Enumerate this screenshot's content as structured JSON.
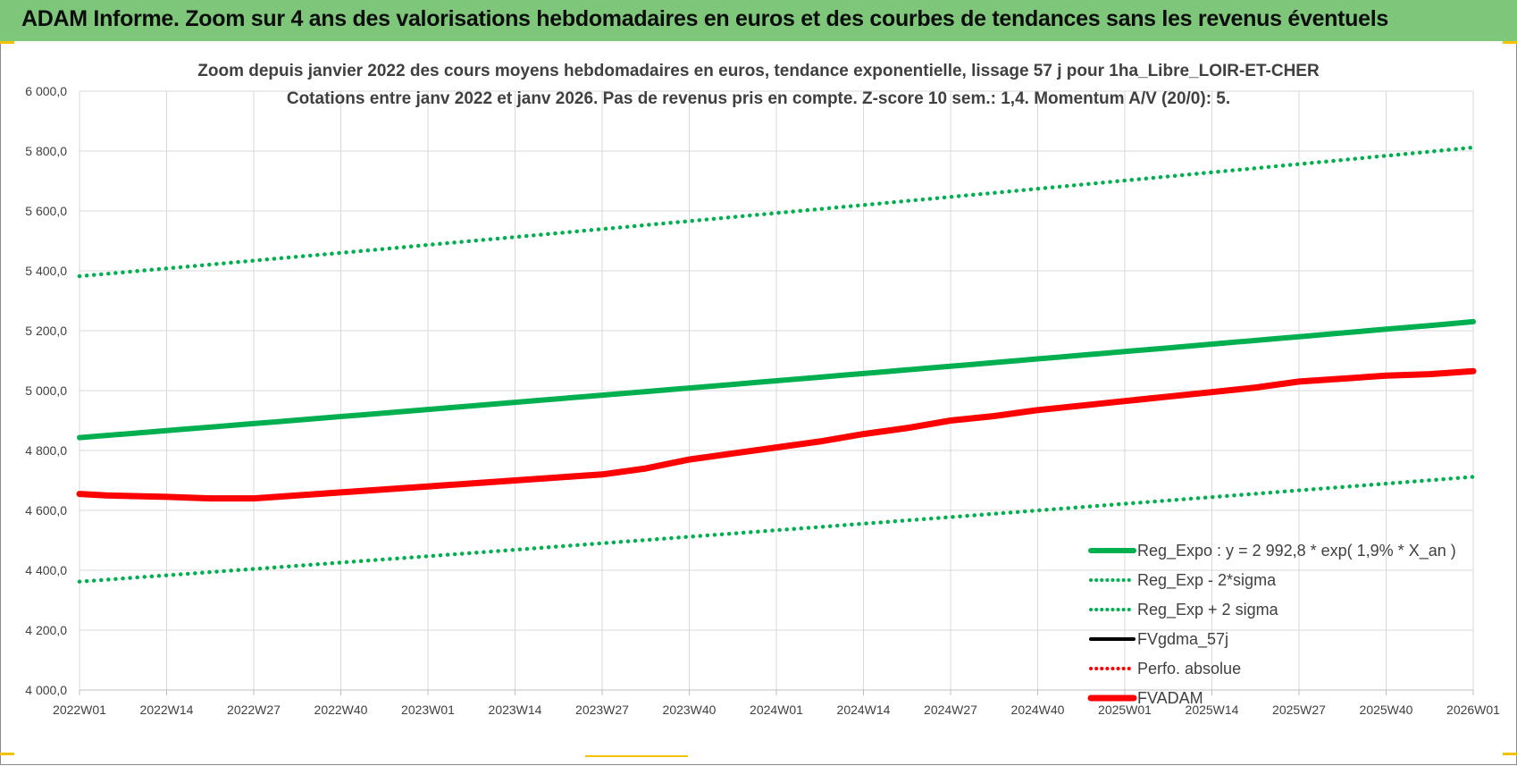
{
  "banner": {
    "title": "ADAM Informe. Zoom sur 4 ans des valorisations hebdomadaires en euros et des courbes de tendances sans les revenus éventuels"
  },
  "colors": {
    "banner": "#7dc67a",
    "trend": "#00b050",
    "fvadam": "#ff0000",
    "fvgdma": "#000000",
    "grid": "#d9d9d9",
    "text": "#404040",
    "accent": "#f2c200"
  },
  "chart_data": {
    "type": "line",
    "title": [
      "Zoom depuis janvier 2022 des cours moyens hebdomadaires en euros, tendance exponentielle, lissage 57 j pour 1ha_Libre_LOIR-ET-CHER",
      "Cotations entre janv 2022 et janv 2026. Pas de revenus pris en compte. Z-score 10 sem.: 1,4. Momentum A/V (20/0): 5."
    ],
    "xlabel": "",
    "ylabel": "",
    "x_tick_labels": [
      "2022W01",
      "2022W14",
      "2022W27",
      "2022W40",
      "2023W01",
      "2023W14",
      "2023W27",
      "2023W40",
      "2024W01",
      "2024W14",
      "2024W27",
      "2024W40",
      "2025W01",
      "2025W14",
      "2025W27",
      "2025W40",
      "2026W01"
    ],
    "y_tick_labels": [
      "4 000,0",
      "4 200,0",
      "4 400,0",
      "4 600,0",
      "4 800,0",
      "5 000,0",
      "5 200,0",
      "5 400,0",
      "5 600,0",
      "5 800,0",
      "6 000,0"
    ],
    "ylim": [
      4000,
      6000
    ],
    "xlim": [
      0,
      16
    ],
    "grid": true,
    "legend_position": "bottom-right",
    "series": [
      {
        "name": "Reg_Expo : y = 2 992,8 * exp( 1,9% *  X_an )",
        "style": "solid",
        "color": "#00b050",
        "x": [
          0,
          16
        ],
        "values": [
          4843,
          5230
        ]
      },
      {
        "name": "Reg_Exp - 2*sigma",
        "style": "dotted",
        "color": "#00b050",
        "x": [
          0,
          16
        ],
        "values": [
          4362,
          4712
        ]
      },
      {
        "name": "Reg_Exp + 2 sigma",
        "style": "dotted",
        "color": "#00b050",
        "x": [
          0,
          16
        ],
        "values": [
          5382,
          5812
        ]
      },
      {
        "name": "FVgdma_57j",
        "style": "solid",
        "color": "#000000",
        "x": [
          0,
          1,
          2,
          3,
          4,
          5,
          6,
          7,
          8,
          9,
          10,
          11,
          12,
          13,
          14,
          15,
          16
        ],
        "values": [
          4655,
          4645,
          4645,
          4660,
          4680,
          4700,
          4720,
          4770,
          4810,
          4855,
          4900,
          4935,
          4965,
          5000,
          5030,
          5050,
          5065
        ]
      },
      {
        "name": "Perfo. absolue",
        "style": "dotted",
        "color": "#ff0000",
        "x": [],
        "values": []
      },
      {
        "name": "FVADAM",
        "style": "thick",
        "color": "#ff0000",
        "x": [
          0,
          0.3,
          1,
          1.5,
          2,
          3,
          4,
          5,
          5.5,
          6,
          6.5,
          7,
          7.5,
          8,
          8.5,
          9,
          9.5,
          10,
          10.5,
          11,
          11.5,
          12,
          12.5,
          13,
          13.5,
          14,
          14.5,
          15,
          15.5,
          16
        ],
        "values": [
          4655,
          4650,
          4645,
          4640,
          4640,
          4660,
          4680,
          4700,
          4710,
          4720,
          4740,
          4770,
          4790,
          4810,
          4830,
          4855,
          4875,
          4900,
          4915,
          4935,
          4950,
          4965,
          4980,
          4995,
          5010,
          5030,
          5040,
          5050,
          5055,
          5065
        ]
      }
    ]
  }
}
